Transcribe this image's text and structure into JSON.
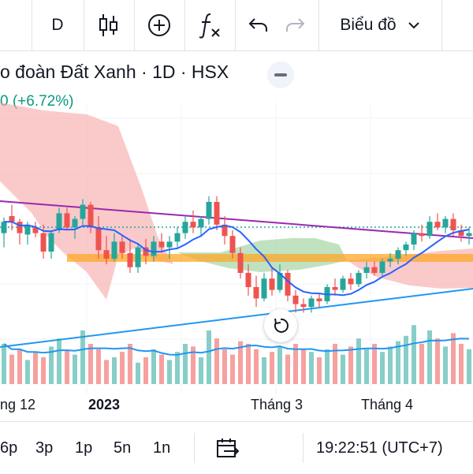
{
  "toolbar": {
    "interval": "D",
    "chart_type_label": "Biểu đồ"
  },
  "symbol": {
    "title": "o đoàn Đất Xanh · 1D · HSX",
    "change": "0 (+6.72%)"
  },
  "x_axis": {
    "labels": [
      "ng 12",
      "2023",
      "Tháng 3",
      "Tháng 4"
    ]
  },
  "bottom": {
    "timeframes": [
      "6p",
      "3p",
      "1p",
      "5n",
      "1n"
    ],
    "clock": "19:22:51 (UTC+7)"
  },
  "chart_data": {
    "type": "candlestick",
    "colors": {
      "up": "#26a69a",
      "down": "#ef5350",
      "ma": "#2962ff",
      "trend_top": "#9c27b0",
      "trend_bottom": "#2196f3"
    },
    "candles": [
      [
        0,
        58,
        69,
        48,
        66
      ],
      [
        1,
        70,
        78,
        60,
        66
      ],
      [
        2,
        66,
        68,
        50,
        58
      ],
      [
        3,
        57,
        66,
        50,
        64
      ],
      [
        4,
        62,
        66,
        55,
        58
      ],
      [
        5,
        58,
        64,
        40,
        45
      ],
      [
        6,
        45,
        60,
        40,
        58
      ],
      [
        7,
        60,
        76,
        58,
        72
      ],
      [
        8,
        72,
        76,
        60,
        62
      ],
      [
        9,
        62,
        70,
        54,
        68
      ],
      [
        10,
        68,
        82,
        64,
        78
      ],
      [
        11,
        78,
        80,
        58,
        62
      ],
      [
        12,
        62,
        70,
        40,
        46
      ],
      [
        13,
        46,
        56,
        36,
        40
      ],
      [
        14,
        40,
        58,
        38,
        52
      ],
      [
        15,
        52,
        56,
        40,
        44
      ],
      [
        16,
        44,
        54,
        30,
        34
      ],
      [
        17,
        34,
        50,
        30,
        48
      ],
      [
        18,
        48,
        54,
        36,
        42
      ],
      [
        19,
        42,
        56,
        38,
        52
      ],
      [
        20,
        52,
        58,
        44,
        48
      ],
      [
        21,
        48,
        56,
        40,
        52
      ],
      [
        22,
        52,
        62,
        48,
        58
      ],
      [
        23,
        58,
        70,
        54,
        66
      ],
      [
        24,
        66,
        74,
        58,
        62
      ],
      [
        25,
        62,
        70,
        56,
        68
      ],
      [
        26,
        68,
        84,
        64,
        80
      ],
      [
        27,
        80,
        84,
        60,
        64
      ],
      [
        28,
        64,
        70,
        50,
        56
      ],
      [
        29,
        56,
        60,
        40,
        44
      ],
      [
        30,
        44,
        48,
        26,
        30
      ],
      [
        31,
        30,
        36,
        14,
        20
      ],
      [
        32,
        20,
        28,
        6,
        12
      ],
      [
        33,
        12,
        30,
        10,
        26
      ],
      [
        34,
        26,
        34,
        14,
        18
      ],
      [
        35,
        18,
        36,
        16,
        30
      ],
      [
        36,
        30,
        32,
        10,
        14
      ],
      [
        37,
        14,
        18,
        2,
        8
      ],
      [
        38,
        8,
        12,
        2,
        6
      ],
      [
        39,
        6,
        14,
        2,
        12
      ],
      [
        40,
        12,
        16,
        6,
        10
      ],
      [
        41,
        10,
        22,
        8,
        20
      ],
      [
        42,
        20,
        26,
        14,
        18
      ],
      [
        43,
        18,
        28,
        16,
        26
      ],
      [
        44,
        26,
        30,
        18,
        22
      ],
      [
        45,
        22,
        32,
        20,
        30
      ],
      [
        46,
        30,
        38,
        26,
        34
      ],
      [
        47,
        34,
        38,
        28,
        30
      ],
      [
        48,
        30,
        40,
        28,
        38
      ],
      [
        49,
        38,
        44,
        34,
        40
      ],
      [
        50,
        40,
        48,
        36,
        46
      ],
      [
        51,
        46,
        52,
        42,
        50
      ],
      [
        52,
        50,
        60,
        46,
        58
      ],
      [
        53,
        58,
        64,
        52,
        56
      ],
      [
        54,
        56,
        70,
        54,
        66
      ],
      [
        55,
        66,
        72,
        60,
        62
      ],
      [
        56,
        62,
        70,
        58,
        68
      ],
      [
        57,
        68,
        72,
        56,
        60
      ],
      [
        58,
        60,
        64,
        52,
        56
      ],
      [
        59,
        56,
        62,
        50,
        58
      ]
    ],
    "volume": [
      30,
      22,
      26,
      18,
      24,
      20,
      28,
      34,
      25,
      22,
      40,
      30,
      26,
      18,
      20,
      24,
      30,
      16,
      20,
      26,
      22,
      18,
      24,
      30,
      28,
      20,
      40,
      34,
      26,
      22,
      32,
      30,
      26,
      20,
      24,
      28,
      22,
      30,
      26,
      24,
      20,
      26,
      30,
      22,
      28,
      34,
      26,
      30,
      24,
      28,
      32,
      36,
      44,
      30,
      40,
      34,
      28,
      38,
      30,
      26
    ]
  }
}
